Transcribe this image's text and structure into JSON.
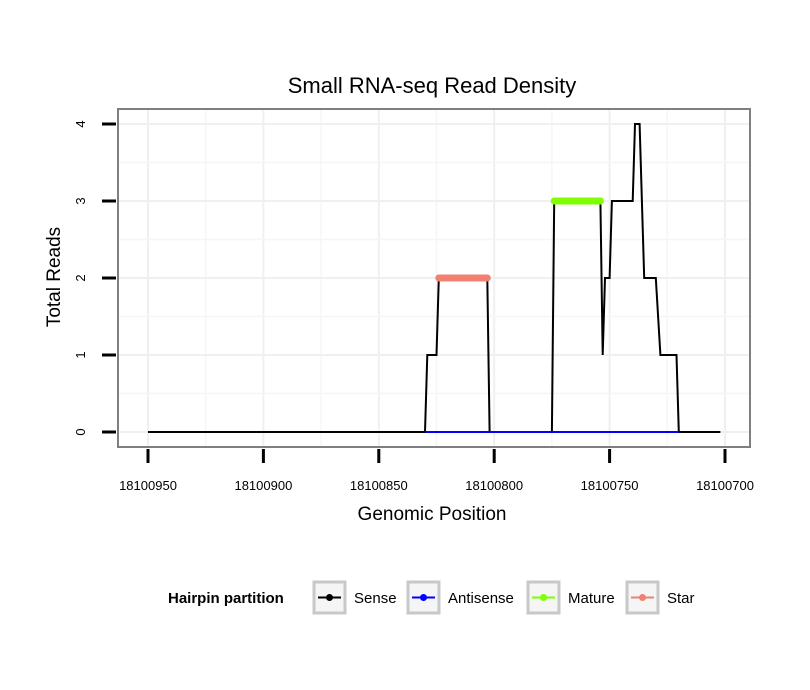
{
  "chart_data": {
    "type": "line",
    "title": "Small RNA-seq Read Density",
    "xlabel": "Genomic Position",
    "ylabel": "Total Reads",
    "x_reversed": true,
    "xlim": [
      18100950,
      18100700
    ],
    "ylim": [
      0,
      4
    ],
    "x_ticks": [
      18100950,
      18100900,
      18100850,
      18100800,
      18100750,
      18100700
    ],
    "x_tick_labels": [
      "18100950",
      "18100900",
      "18100850",
      "18100800",
      "18100750",
      "18100700"
    ],
    "y_ticks": [
      0,
      1,
      2,
      3,
      4
    ],
    "y_tick_labels": [
      "0",
      "1",
      "2",
      "3",
      "4"
    ],
    "grid": true,
    "legend": {
      "title": "Hairpin partition",
      "position": "bottom"
    },
    "series": [
      {
        "name": "Sense",
        "color": "#000000",
        "points": [
          [
            18100950,
            0
          ],
          [
            18100830,
            0
          ],
          [
            18100829,
            1
          ],
          [
            18100825,
            1
          ],
          [
            18100824,
            2
          ],
          [
            18100803,
            2
          ],
          [
            18100802,
            0
          ],
          [
            18100775,
            0
          ],
          [
            18100774,
            3
          ],
          [
            18100754,
            3
          ],
          [
            18100753,
            1
          ],
          [
            18100752,
            2
          ],
          [
            18100750,
            2
          ],
          [
            18100749,
            3
          ],
          [
            18100740,
            3
          ],
          [
            18100739,
            4
          ],
          [
            18100737,
            4
          ],
          [
            18100735,
            2
          ],
          [
            18100730,
            2
          ],
          [
            18100728,
            1
          ],
          [
            18100721,
            1
          ],
          [
            18100720,
            0
          ],
          [
            18100702,
            0
          ]
        ]
      },
      {
        "name": "Antisense",
        "color": "#0000ff",
        "points": [
          [
            18100830,
            0
          ],
          [
            18100720,
            0
          ]
        ]
      },
      {
        "name": "Mature",
        "color": "#80ff00",
        "points": [
          [
            18100774,
            3
          ],
          [
            18100754,
            3
          ]
        ]
      },
      {
        "name": "Star",
        "color": "#f08070",
        "points": [
          [
            18100824,
            2
          ],
          [
            18100803,
            2
          ]
        ]
      }
    ]
  }
}
